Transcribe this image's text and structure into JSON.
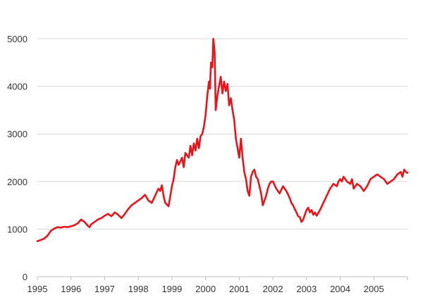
{
  "chart_data": {
    "type": "line",
    "title": "",
    "xlabel": "",
    "ylabel": "",
    "xlim": [
      1995,
      2006
    ],
    "ylim": [
      0,
      5000
    ],
    "grid": true,
    "legend": "none",
    "x_ticks": [
      1995,
      1996,
      1997,
      1998,
      1999,
      2000,
      2001,
      2002,
      2003,
      2004,
      2005
    ],
    "x_tick_labels": [
      "1995",
      "1996",
      "1997",
      "1998",
      "1999",
      "2000",
      "2001",
      "2002",
      "2003",
      "2004",
      "2005"
    ],
    "y_ticks": [
      0,
      1000,
      2000,
      3000,
      4000,
      5000
    ],
    "y_tick_labels": [
      "0",
      "1000",
      "2000",
      "3000",
      "4000",
      "5000"
    ],
    "colors": {
      "line": "#e8141c",
      "grid": "#d9d9d9",
      "axis": "#bfbfbf",
      "text": "#333333"
    },
    "series": [
      {
        "x": [
          1995.0,
          1995.1,
          1995.2,
          1995.3,
          1995.4,
          1995.5,
          1995.6,
          1995.7,
          1995.8,
          1995.9,
          1996.0,
          1996.1,
          1996.2,
          1996.3,
          1996.4,
          1996.5,
          1996.55,
          1996.6,
          1996.7,
          1996.8,
          1996.9,
          1997.0,
          1997.1,
          1997.2,
          1997.3,
          1997.4,
          1997.5,
          1997.6,
          1997.7,
          1997.8,
          1997.9,
          1998.0,
          1998.1,
          1998.2,
          1998.3,
          1998.4,
          1998.5,
          1998.55,
          1998.6,
          1998.65,
          1998.7,
          1998.75,
          1998.8,
          1998.9,
          1999.0,
          1999.05,
          1999.1,
          1999.15,
          1999.2,
          1999.3,
          1999.35,
          1999.4,
          1999.5,
          1999.55,
          1999.6,
          1999.65,
          1999.7,
          1999.75,
          1999.8,
          1999.85,
          1999.9,
          1999.95,
          2000.0,
          2000.05,
          2000.1,
          2000.13,
          2000.16,
          2000.2,
          2000.23,
          2000.27,
          2000.3,
          2000.35,
          2000.4,
          2000.45,
          2000.5,
          2000.55,
          2000.6,
          2000.65,
          2000.7,
          2000.75,
          2000.8,
          2000.85,
          2000.9,
          2000.95,
          2001.0,
          2001.05,
          2001.1,
          2001.15,
          2001.2,
          2001.25,
          2001.3,
          2001.35,
          2001.4,
          2001.45,
          2001.5,
          2001.55,
          2001.6,
          2001.65,
          2001.7,
          2001.75,
          2001.8,
          2001.85,
          2001.9,
          2001.95,
          2002.0,
          2002.1,
          2002.2,
          2002.3,
          2002.4,
          2002.5,
          2002.55,
          2002.6,
          2002.65,
          2002.7,
          2002.75,
          2002.8,
          2002.85,
          2002.9,
          2002.95,
          2003.0,
          2003.05,
          2003.1,
          2003.15,
          2003.2,
          2003.25,
          2003.3,
          2003.4,
          2003.5,
          2003.6,
          2003.7,
          2003.8,
          2003.9,
          2003.95,
          2004.0,
          2004.05,
          2004.1,
          2004.15,
          2004.2,
          2004.3,
          2004.35,
          2004.4,
          2004.5,
          2004.6,
          2004.7,
          2004.8,
          2004.9,
          2005.0,
          2005.1,
          2005.2,
          2005.3,
          2005.4,
          2005.5,
          2005.6,
          2005.7,
          2005.8,
          2005.85,
          2005.9,
          2005.95,
          2006.0
        ],
        "y": [
          745,
          770,
          800,
          860,
          960,
          1010,
          1040,
          1030,
          1050,
          1040,
          1060,
          1080,
          1120,
          1200,
          1150,
          1070,
          1040,
          1100,
          1150,
          1200,
          1230,
          1280,
          1320,
          1270,
          1350,
          1300,
          1230,
          1320,
          1420,
          1500,
          1550,
          1600,
          1650,
          1720,
          1600,
          1550,
          1700,
          1780,
          1850,
          1800,
          1920,
          1700,
          1550,
          1480,
          1900,
          2050,
          2300,
          2450,
          2350,
          2500,
          2300,
          2600,
          2500,
          2750,
          2550,
          2800,
          2650,
          2900,
          2700,
          2950,
          3000,
          3150,
          3400,
          3800,
          4100,
          3950,
          4500,
          4400,
          5000,
          4700,
          3500,
          3800,
          4000,
          4200,
          3850,
          4100,
          3900,
          4050,
          3600,
          3750,
          3500,
          3300,
          2900,
          2700,
          2500,
          2900,
          2500,
          2200,
          2050,
          1800,
          1700,
          2100,
          2200,
          2250,
          2100,
          2050,
          1900,
          1750,
          1500,
          1600,
          1700,
          1850,
          1950,
          2000,
          2000,
          1850,
          1750,
          1900,
          1800,
          1650,
          1550,
          1500,
          1420,
          1350,
          1270,
          1250,
          1150,
          1200,
          1300,
          1400,
          1450,
          1350,
          1400,
          1300,
          1350,
          1280,
          1400,
          1550,
          1700,
          1850,
          1950,
          1900,
          2000,
          2050,
          2000,
          2100,
          2050,
          2000,
          1950,
          2050,
          1850,
          1950,
          1900,
          1800,
          1900,
          2050,
          2100,
          2150,
          2100,
          2050,
          1950,
          2000,
          2050,
          2150,
          2200,
          2100,
          2250,
          2200,
          2180
        ]
      }
    ]
  }
}
